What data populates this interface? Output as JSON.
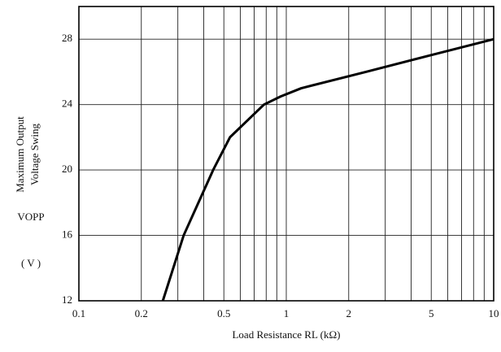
{
  "chart_data": {
    "type": "line",
    "ylabel": [
      "Maximum Output",
      "Voltage Swing"
    ],
    "ylabel_symbol": "VOPP",
    "ylabel_unit": "( V )",
    "xlabel": "Load Resistance  RL  (kΩ)",
    "xscale": "log",
    "xlim": [
      0.1,
      10
    ],
    "xticks": [
      0.1,
      0.2,
      0.5,
      1,
      2,
      5,
      10
    ],
    "xgrid": [
      0.1,
      0.2,
      0.3,
      0.4,
      0.5,
      0.6,
      0.7,
      0.8,
      0.9,
      1,
      2,
      3,
      4,
      5,
      6,
      7,
      8,
      9,
      10
    ],
    "ylim": [
      12,
      30
    ],
    "yticks": [
      12,
      16,
      20,
      24,
      28
    ],
    "grid": true,
    "series": [
      {
        "color": "#000000",
        "x": [
          0.254,
          0.32,
          0.444,
          0.535,
          0.78,
          0.94,
          1.18,
          2.42,
          4.9,
          10
        ],
        "values": [
          12,
          16,
          20,
          22,
          24,
          24.5,
          25,
          26,
          27,
          28
        ]
      }
    ]
  }
}
